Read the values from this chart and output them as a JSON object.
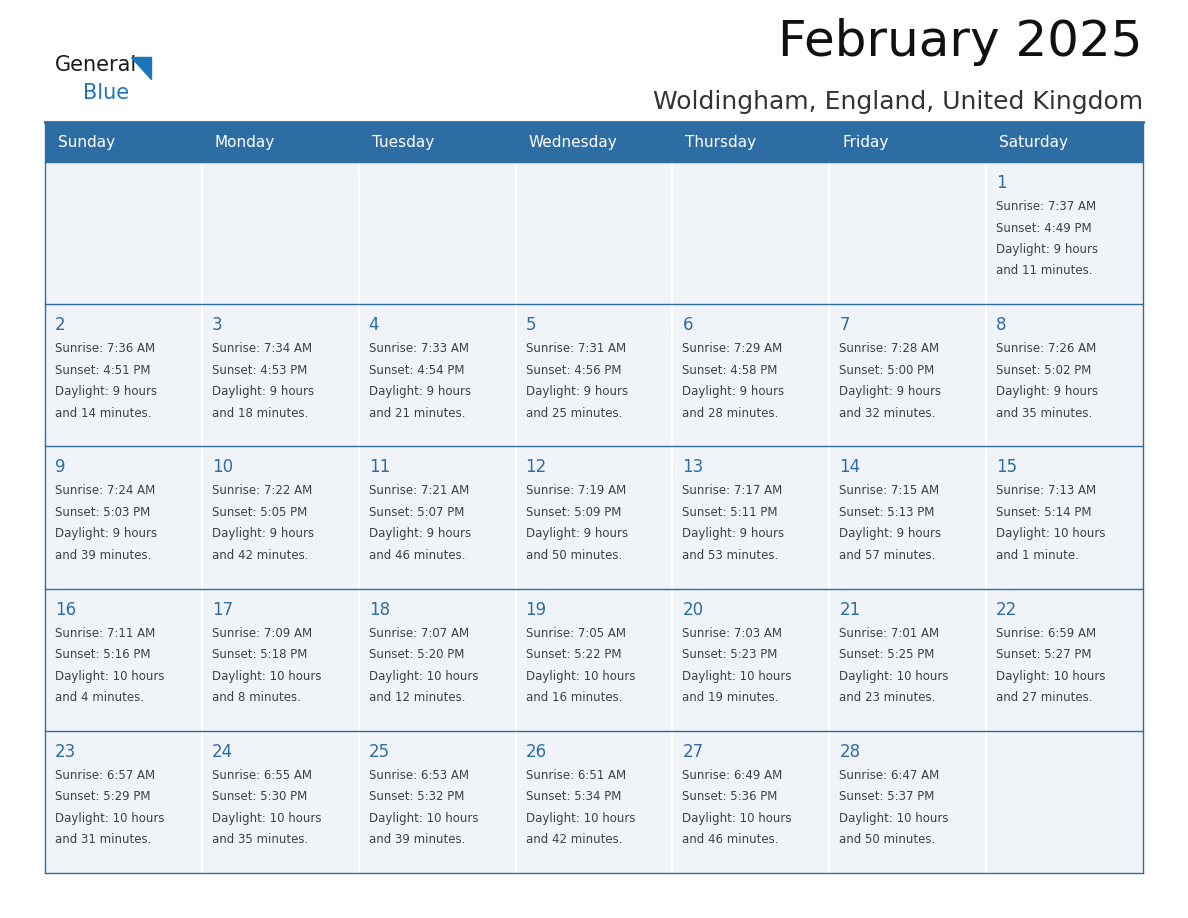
{
  "title": "February 2025",
  "subtitle": "Woldingham, England, United Kingdom",
  "days_of_week": [
    "Sunday",
    "Monday",
    "Tuesday",
    "Wednesday",
    "Thursday",
    "Friday",
    "Saturday"
  ],
  "header_bg": "#2E6DA4",
  "header_text": "#FFFFFF",
  "cell_bg": "#F0F4F8",
  "line_color": "#2E6DA4",
  "day_number_color": "#2E6DA4",
  "text_color": "#404040",
  "calendar_data": [
    [
      null,
      null,
      null,
      null,
      null,
      null,
      {
        "day": 1,
        "sunrise": "7:37 AM",
        "sunset": "4:49 PM",
        "daylight": "9 hours and 11 minutes."
      }
    ],
    [
      {
        "day": 2,
        "sunrise": "7:36 AM",
        "sunset": "4:51 PM",
        "daylight": "9 hours and 14 minutes."
      },
      {
        "day": 3,
        "sunrise": "7:34 AM",
        "sunset": "4:53 PM",
        "daylight": "9 hours and 18 minutes."
      },
      {
        "day": 4,
        "sunrise": "7:33 AM",
        "sunset": "4:54 PM",
        "daylight": "9 hours and 21 minutes."
      },
      {
        "day": 5,
        "sunrise": "7:31 AM",
        "sunset": "4:56 PM",
        "daylight": "9 hours and 25 minutes."
      },
      {
        "day": 6,
        "sunrise": "7:29 AM",
        "sunset": "4:58 PM",
        "daylight": "9 hours and 28 minutes."
      },
      {
        "day": 7,
        "sunrise": "7:28 AM",
        "sunset": "5:00 PM",
        "daylight": "9 hours and 32 minutes."
      },
      {
        "day": 8,
        "sunrise": "7:26 AM",
        "sunset": "5:02 PM",
        "daylight": "9 hours and 35 minutes."
      }
    ],
    [
      {
        "day": 9,
        "sunrise": "7:24 AM",
        "sunset": "5:03 PM",
        "daylight": "9 hours and 39 minutes."
      },
      {
        "day": 10,
        "sunrise": "7:22 AM",
        "sunset": "5:05 PM",
        "daylight": "9 hours and 42 minutes."
      },
      {
        "day": 11,
        "sunrise": "7:21 AM",
        "sunset": "5:07 PM",
        "daylight": "9 hours and 46 minutes."
      },
      {
        "day": 12,
        "sunrise": "7:19 AM",
        "sunset": "5:09 PM",
        "daylight": "9 hours and 50 minutes."
      },
      {
        "day": 13,
        "sunrise": "7:17 AM",
        "sunset": "5:11 PM",
        "daylight": "9 hours and 53 minutes."
      },
      {
        "day": 14,
        "sunrise": "7:15 AM",
        "sunset": "5:13 PM",
        "daylight": "9 hours and 57 minutes."
      },
      {
        "day": 15,
        "sunrise": "7:13 AM",
        "sunset": "5:14 PM",
        "daylight": "10 hours and 1 minute."
      }
    ],
    [
      {
        "day": 16,
        "sunrise": "7:11 AM",
        "sunset": "5:16 PM",
        "daylight": "10 hours and 4 minutes."
      },
      {
        "day": 17,
        "sunrise": "7:09 AM",
        "sunset": "5:18 PM",
        "daylight": "10 hours and 8 minutes."
      },
      {
        "day": 18,
        "sunrise": "7:07 AM",
        "sunset": "5:20 PM",
        "daylight": "10 hours and 12 minutes."
      },
      {
        "day": 19,
        "sunrise": "7:05 AM",
        "sunset": "5:22 PM",
        "daylight": "10 hours and 16 minutes."
      },
      {
        "day": 20,
        "sunrise": "7:03 AM",
        "sunset": "5:23 PM",
        "daylight": "10 hours and 19 minutes."
      },
      {
        "day": 21,
        "sunrise": "7:01 AM",
        "sunset": "5:25 PM",
        "daylight": "10 hours and 23 minutes."
      },
      {
        "day": 22,
        "sunrise": "6:59 AM",
        "sunset": "5:27 PM",
        "daylight": "10 hours and 27 minutes."
      }
    ],
    [
      {
        "day": 23,
        "sunrise": "6:57 AM",
        "sunset": "5:29 PM",
        "daylight": "10 hours and 31 minutes."
      },
      {
        "day": 24,
        "sunrise": "6:55 AM",
        "sunset": "5:30 PM",
        "daylight": "10 hours and 35 minutes."
      },
      {
        "day": 25,
        "sunrise": "6:53 AM",
        "sunset": "5:32 PM",
        "daylight": "10 hours and 39 minutes."
      },
      {
        "day": 26,
        "sunrise": "6:51 AM",
        "sunset": "5:34 PM",
        "daylight": "10 hours and 42 minutes."
      },
      {
        "day": 27,
        "sunrise": "6:49 AM",
        "sunset": "5:36 PM",
        "daylight": "10 hours and 46 minutes."
      },
      {
        "day": 28,
        "sunrise": "6:47 AM",
        "sunset": "5:37 PM",
        "daylight": "10 hours and 50 minutes."
      },
      null
    ]
  ],
  "num_weeks": 5,
  "num_cols": 7,
  "logo_color_general": "#1a1a1a",
  "logo_color_blue": "#1B75BB",
  "logo_triangle_color": "#1B75BB",
  "title_fontsize": 36,
  "subtitle_fontsize": 18,
  "header_fontsize": 11,
  "day_num_fontsize": 12,
  "cell_text_fontsize": 8.5
}
